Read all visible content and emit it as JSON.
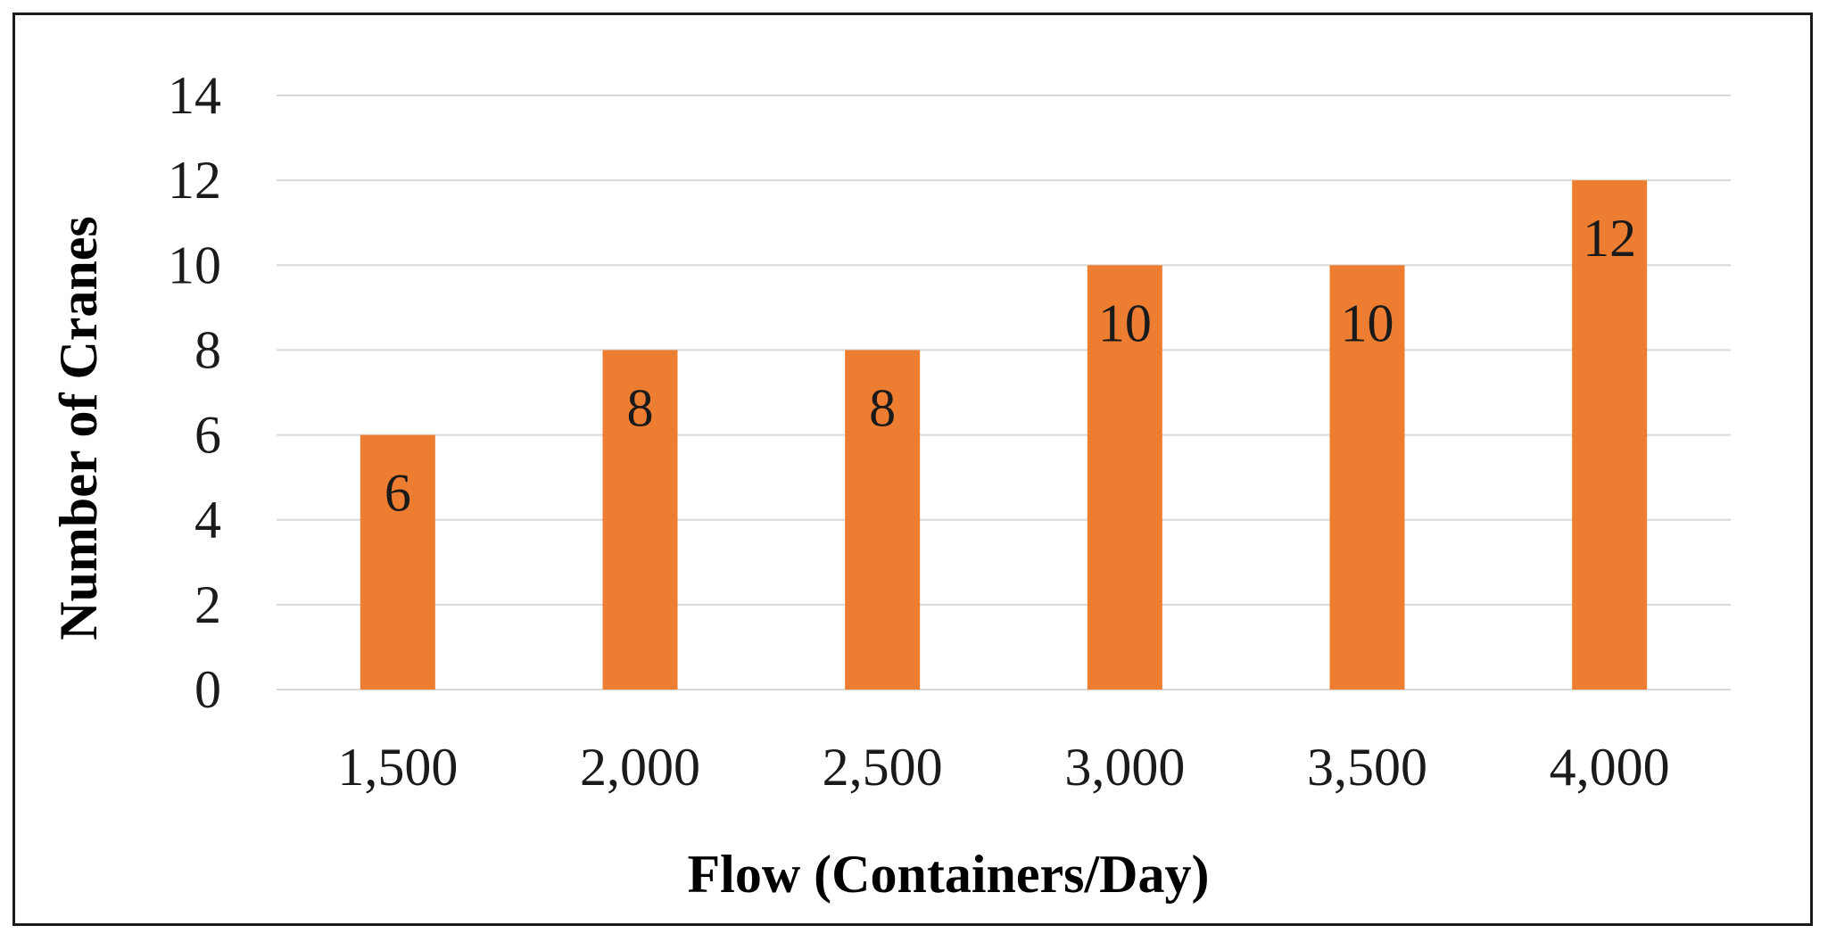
{
  "chart_data": {
    "type": "bar",
    "categories": [
      "1,500",
      "2,000",
      "2,500",
      "3,000",
      "3,500",
      "4,000"
    ],
    "values": [
      6,
      8,
      8,
      10,
      10,
      12
    ],
    "data_labels": [
      "6",
      "8",
      "8",
      "10",
      "10",
      "12"
    ],
    "title": "",
    "xlabel": "Flow (Containers/Day)",
    "ylabel": "Number  of Cranes",
    "ylim": [
      0,
      14
    ],
    "yticks": [
      "0",
      "2",
      "4",
      "6",
      "8",
      "10",
      "12",
      "14"
    ],
    "grid": true,
    "legend": "none",
    "colors": {
      "bar": "#ED7D31",
      "grid": "#D9D9D9",
      "text": "#1a1a1a"
    }
  }
}
